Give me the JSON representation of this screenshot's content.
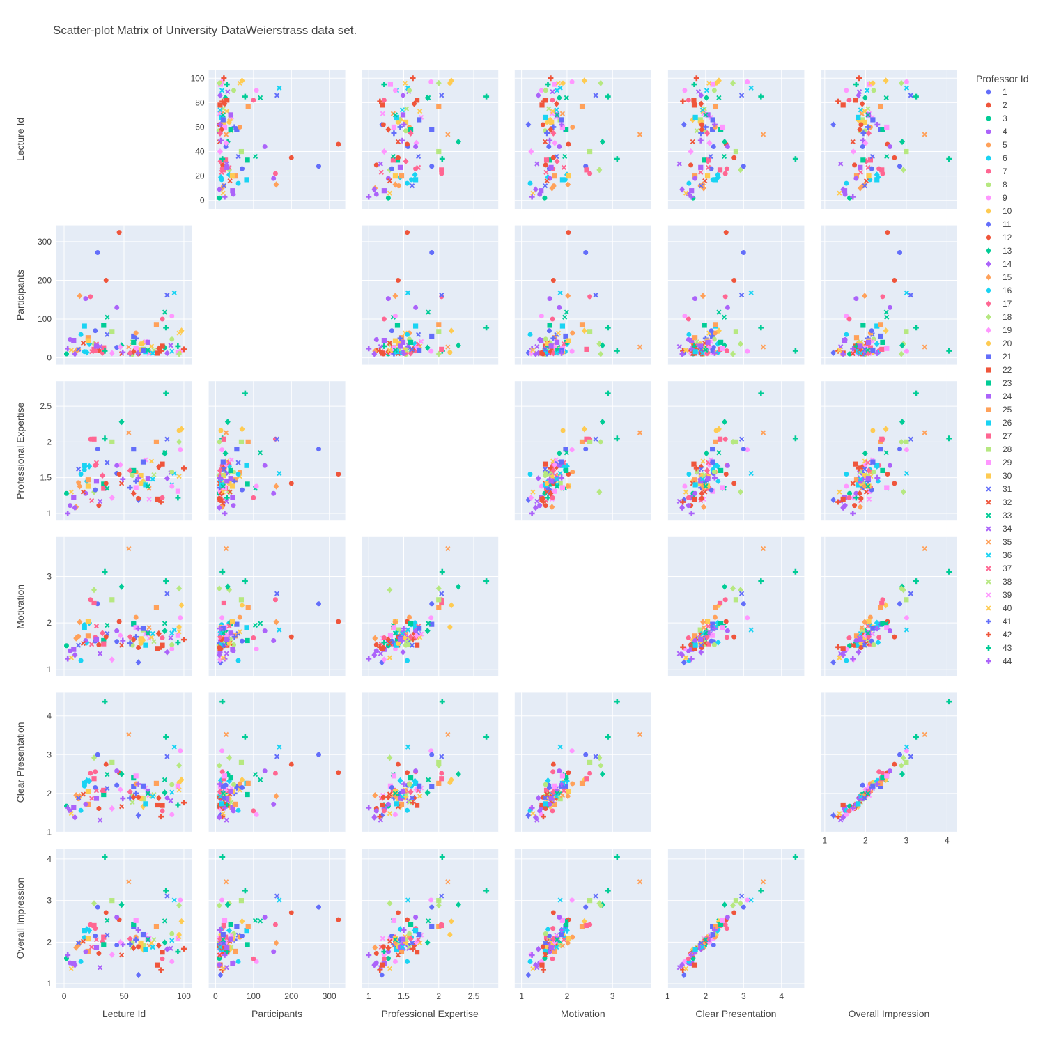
{
  "chart_data": {
    "type": "scatter",
    "title": "Scatter-plot Matrix of University DataWeierstrass data set.",
    "legend": {
      "title": "Professor Id",
      "placement": "right",
      "count": 44
    },
    "grid": true,
    "palette": [
      "#636efa",
      "#EF553B",
      "#00cc96",
      "#ab63fa",
      "#FFA15A",
      "#19d3f3",
      "#FF6692",
      "#B6E880",
      "#FF97FF",
      "#FECB52"
    ],
    "symbols": [
      "circle",
      "diamond",
      "square",
      "x",
      "cross"
    ],
    "dimensions": [
      {
        "label": "Lecture Id",
        "range": [
          -7,
          107
        ],
        "ticks": [
          0,
          20,
          40,
          60,
          80,
          100
        ],
        "ticks_y": [
          0,
          20,
          40,
          60,
          80,
          100
        ],
        "ticks_x": [
          0,
          50,
          100
        ]
      },
      {
        "label": "Participants",
        "range": [
          -18,
          342
        ],
        "ticks": [
          0,
          100,
          200,
          300
        ],
        "ticks_y": [
          0,
          100,
          200,
          300
        ],
        "ticks_x": [
          0,
          100,
          200,
          300
        ]
      },
      {
        "label": "Professional Expertise",
        "range": [
          0.9,
          2.85
        ],
        "ticks": [
          1,
          1.5,
          2,
          2.5
        ],
        "ticks_y": [
          1,
          1.5,
          2,
          2.5
        ],
        "ticks_x": [
          1,
          1.5,
          2,
          2.5
        ]
      },
      {
        "label": "Motivation",
        "range": [
          0.85,
          3.85
        ],
        "ticks": [
          1,
          2,
          3
        ],
        "ticks_y": [
          1,
          2,
          3
        ],
        "ticks_x": [
          1,
          2,
          3
        ]
      },
      {
        "label": "Clear Presentation",
        "range": [
          1,
          4.6
        ],
        "ticks": [
          1,
          2,
          3,
          4
        ],
        "ticks_y": [
          1,
          2,
          3,
          4
        ],
        "ticks_x": [
          1,
          2,
          3,
          4
        ]
      },
      {
        "label": "Overall Impression",
        "range": [
          0.9,
          4.25
        ],
        "ticks": [
          1,
          2,
          3,
          4
        ],
        "ticks_y": [
          1,
          2,
          3,
          4
        ],
        "ticks_x": [
          1,
          2,
          3,
          4
        ]
      }
    ],
    "records": [
      [
        1,
        1,
        44,
        27,
        1.56,
        1.6,
        2.21,
        1.93
      ],
      [
        2,
        2,
        29,
        19,
        1.11,
        1.53,
        1.61,
        1.73
      ],
      [
        3,
        3,
        2,
        10,
        1.28,
        1.51,
        1.67,
        1.61
      ],
      [
        4,
        4,
        5,
        47,
        1.11,
        1.4,
        1.55,
        1.5
      ],
      [
        5,
        5,
        12,
        21,
        1.43,
        1.71,
        1.86,
        1.94
      ],
      [
        6,
        6,
        17,
        16,
        1.61,
        1.96,
        2.19,
        2.11
      ],
      [
        7,
        7,
        26,
        18,
        1.67,
        1.69,
        2.56,
        2.33
      ],
      [
        8,
        8,
        57,
        9,
        1.53,
        1.52,
        1.94,
        1.99
      ],
      [
        9,
        9,
        97,
        17,
        1.89,
        2.11,
        3.1,
        3.01
      ],
      [
        10,
        10,
        96,
        14,
        2.16,
        1.91,
        2.28,
        2.18
      ],
      [
        11,
        11,
        62,
        13,
        1.19,
        1.15,
        1.43,
        1.21
      ],
      [
        12,
        12,
        79,
        24,
        1.65,
        1.77,
        1.88,
        1.92
      ],
      [
        13,
        13,
        84,
        26,
        1.84,
        1.83,
        2.02,
        1.99
      ],
      [
        14,
        14,
        86,
        12,
        1.49,
        1.37,
        1.88,
        1.83
      ],
      [
        15,
        15,
        10,
        17,
        1.09,
        1.67,
        1.95,
        1.87
      ],
      [
        16,
        16,
        19,
        14,
        1.45,
        1.58,
        2.33,
        2.31
      ],
      [
        17,
        17,
        32,
        13,
        1.53,
        1.78,
        2.06,
        2.02
      ],
      [
        18,
        18,
        25,
        36,
        1.3,
        2.71,
        2.92,
        2.93
      ],
      [
        19,
        19,
        40,
        12,
        1.22,
        1.21,
        1.61,
        1.7
      ],
      [
        20,
        20,
        66,
        38,
        1.45,
        1.63,
        1.66,
        1.82
      ],
      [
        21,
        21,
        58,
        56,
        1.9,
        1.97,
        2.18,
        2.37
      ],
      [
        22,
        22,
        82,
        30,
        1.69,
        1.52,
        1.69,
        1.76
      ],
      [
        23,
        23,
        33,
        84,
        1.41,
        1.62,
        1.97,
        1.94
      ],
      [
        24,
        24,
        8,
        45,
        1.22,
        1.43,
        1.63,
        1.49
      ],
      [
        25,
        25,
        20,
        52,
        1.47,
        1.72,
        1.72,
        1.78
      ],
      [
        26,
        26,
        17,
        82,
        1.67,
        1.9,
        2.26,
        2.28
      ],
      [
        27,
        27,
        33,
        26,
        1.35,
        1.55,
        2.08,
        2.12
      ],
      [
        28,
        28,
        66,
        22,
        1.42,
        1.85,
        1.86,
        1.93
      ],
      [
        29,
        29,
        95,
        13,
        1.31,
        1.73,
        2.19,
        2.09
      ],
      [
        30,
        30,
        64,
        21,
        1.53,
        1.66,
        1.88,
        1.98
      ],
      [
        31,
        31,
        36,
        60,
        1.71,
        1.77,
        2.13,
        2.17
      ],
      [
        32,
        32,
        48,
        11,
        1.42,
        1.52,
        1.66,
        1.69
      ],
      [
        33,
        33,
        36,
        105,
        1.35,
        1.95,
        2.49,
        2.52
      ],
      [
        34,
        34,
        89,
        32,
        1.57,
        1.68,
        1.81,
        1.85
      ],
      [
        35,
        35,
        71,
        16,
        1.35,
        1.9,
        1.95,
        1.91
      ],
      [
        36,
        36,
        90,
        17,
        1.4,
        1.78,
        2.03,
        2.04
      ],
      [
        37,
        37,
        23,
        16,
        1.18,
        1.54,
        1.87,
        1.88
      ],
      [
        38,
        38,
        57,
        41,
        1.58,
        1.65,
        1.77,
        1.88
      ],
      [
        39,
        39,
        71,
        11,
        1.2,
        1.67,
        1.95,
        2.09
      ],
      [
        40,
        40,
        96,
        64,
        1.52,
        1.81,
        2.09,
        2.13
      ],
      [
        41,
        41,
        55,
        11,
        1.36,
        1.56,
        1.88,
        1.95
      ],
      [
        42,
        42,
        100,
        22,
        1.63,
        1.64,
        1.76,
        1.84
      ],
      [
        43,
        43,
        95,
        30,
        1.22,
        1.58,
        1.7,
        1.77
      ],
      [
        44,
        44,
        49,
        14,
        1.48,
        1.62,
        1.87,
        1.94
      ],
      [
        3,
        2,
        35,
        200,
        1.42,
        1.7,
        2.75,
        2.71
      ],
      [
        11,
        1,
        28,
        272,
        1.9,
        2.41,
        3.0,
        2.84
      ],
      [
        12,
        2,
        46,
        324,
        1.55,
        2.03,
        2.54,
        2.54
      ],
      [
        14,
        4,
        18,
        153,
        1.28,
        1.62,
        1.72,
        1.77
      ],
      [
        17,
        7,
        22,
        158,
        2.04,
        2.5,
        2.52,
        2.42
      ],
      [
        31,
        31,
        86,
        162,
        2.04,
        2.63,
        2.95,
        3.11
      ],
      [
        33,
        33,
        84,
        118,
        1.85,
        1.99,
        2.35,
        2.51
      ],
      [
        35,
        35,
        54,
        28,
        2.13,
        3.6,
        3.52,
        3.45
      ],
      [
        36,
        36,
        92,
        168,
        1.56,
        1.85,
        3.2,
        3.01
      ],
      [
        43,
        43,
        34,
        18,
        2.05,
        3.1,
        4.37,
        4.05
      ],
      [
        43,
        43,
        85,
        78,
        2.68,
        2.9,
        3.46,
        3.24
      ],
      [
        13,
        13,
        48,
        32,
        2.28,
        2.78,
        2.5,
        2.9
      ],
      [
        16,
        16,
        21,
        36,
        1.66,
        2.0,
        2.32,
        2.28
      ],
      [
        18,
        18,
        96,
        10,
        2.0,
        2.74,
        2.72,
        2.88
      ],
      [
        20,
        20,
        98,
        70,
        2.18,
        2.38,
        2.35,
        2.5
      ],
      [
        25,
        25,
        77,
        86,
        2.0,
        2.33,
        2.26,
        2.37
      ],
      [
        27,
        27,
        25,
        22,
        2.04,
        2.43,
        2.38,
        2.4
      ],
      [
        28,
        28,
        40,
        68,
        2.0,
        2.5,
        2.8,
        3.0
      ],
      [
        5,
        5,
        60,
        64,
        1.58,
        2.12,
        2.25,
        2.12
      ],
      [
        9,
        9,
        90,
        108,
        1.38,
        1.44,
        1.45,
        1.53
      ],
      [
        34,
        34,
        30,
        29,
        1.17,
        1.34,
        1.31,
        1.39
      ],
      [
        38,
        38,
        75,
        20,
        1.54,
        1.6,
        1.97,
        2.06
      ],
      [
        40,
        40,
        73,
        30,
        1.73,
        1.69,
        1.93,
        1.98
      ],
      [
        42,
        42,
        81,
        18,
        1.16,
        1.48,
        1.4,
        1.33
      ],
      [
        22,
        22,
        78,
        12,
        1.2,
        1.45,
        1.7,
        1.45
      ],
      [
        41,
        41,
        60,
        50,
        1.45,
        1.7,
        2.0,
        2.06
      ],
      [
        1,
        1,
        26,
        70,
        1.33,
        1.61,
        2.15,
        2.15
      ],
      [
        6,
        6,
        14,
        60,
        1.55,
        1.19,
        1.56,
        1.53
      ],
      [
        8,
        8,
        90,
        48,
        1.58,
        1.53,
        2.23,
        2.2
      ],
      [
        19,
        19,
        47,
        28,
        1.68,
        1.73,
        2.1,
        2.0
      ],
      [
        23,
        23,
        58,
        40,
        1.6,
        1.98,
        2.4,
        2.42
      ],
      [
        26,
        26,
        68,
        16,
        1.4,
        1.52,
        1.73,
        1.82
      ],
      [
        29,
        29,
        60,
        24,
        1.36,
        1.9,
        2.45,
        2.52
      ],
      [
        30,
        30,
        20,
        44,
        1.38,
        2.03,
        2.05,
        2.08
      ],
      [
        32,
        32,
        16,
        38,
        1.3,
        1.56,
        1.98,
        2.02
      ],
      [
        37,
        37,
        27,
        36,
        1.71,
        1.93,
        2.07,
        2.06
      ],
      [
        39,
        39,
        68,
        42,
        1.75,
        1.76,
        2.14,
        2.17
      ],
      [
        44,
        44,
        3,
        24,
        1.0,
        1.23,
        1.63,
        1.69
      ],
      [
        4,
        4,
        44,
        130,
        1.67,
        1.83,
        2.58,
        2.6
      ],
      [
        7,
        7,
        82,
        100,
        1.22,
        1.68,
        1.55,
        1.6
      ],
      [
        10,
        10,
        64,
        36,
        1.42,
        1.56,
        1.86,
        1.89
      ],
      [
        15,
        15,
        13,
        160,
        1.38,
        2.02,
        1.93,
        1.98
      ],
      [
        21,
        21,
        66,
        20,
        1.72,
        1.88,
        2.19,
        2.18
      ],
      [
        24,
        24,
        70,
        40,
        1.49,
        1.78,
        2.06,
        2.07
      ],
      [
        2,
        2,
        62,
        10,
        1.21,
        1.47,
        1.9,
        1.89
      ],
      [
        12,
        12,
        58,
        16,
        1.28,
        1.64,
        1.9,
        1.86
      ],
      [
        14,
        14,
        9,
        10,
        1.08,
        1.31,
        1.38,
        1.45
      ],
      [
        17,
        17,
        55,
        12,
        1.6,
        1.7,
        2.04,
        2.08
      ],
      [
        24,
        24,
        27,
        30,
        1.45,
        1.65,
        1.87,
        1.87
      ],
      [
        31,
        31,
        12,
        22,
        1.62,
        1.52,
        1.88,
        1.98
      ],
      [
        33,
        33,
        70,
        20,
        1.38,
        1.78,
        2.0,
        2.06
      ],
      [
        36,
        36,
        74,
        12,
        1.48,
        1.77,
        1.92,
        1.88
      ],
      [
        40,
        40,
        6,
        20,
        1.3,
        1.25,
        1.48,
        1.36
      ],
      [
        44,
        44,
        62,
        12,
        1.5,
        1.88,
        2.24,
        2.29
      ]
    ]
  }
}
